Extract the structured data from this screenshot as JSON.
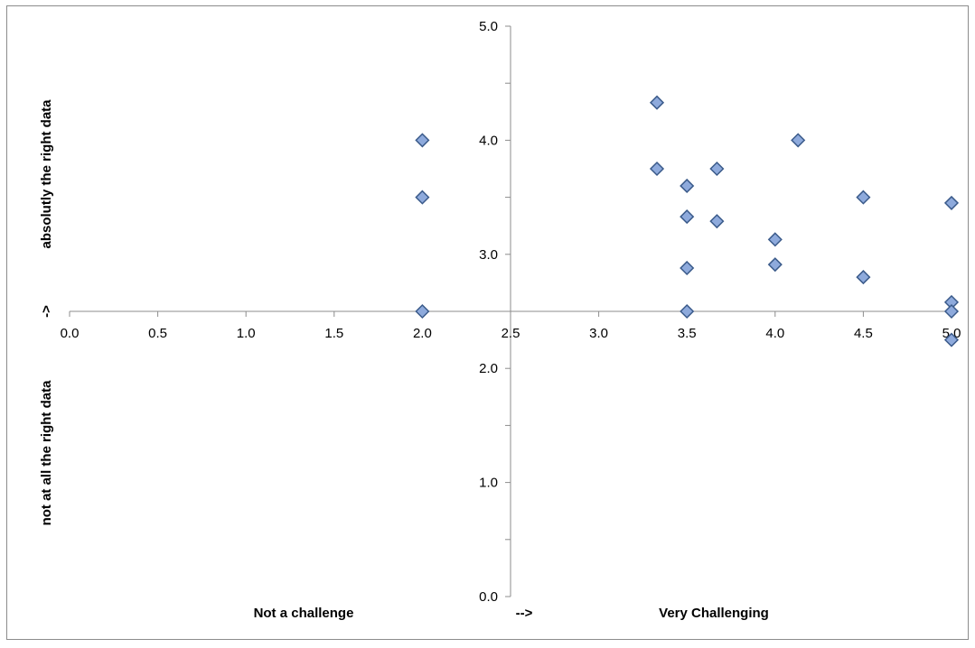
{
  "chart_data": {
    "type": "scatter",
    "x_title_left": "Not a challenge",
    "x_title_arrow": "-->",
    "x_title_right": "Very Challenging",
    "y_title_top": "absolutly the right data",
    "y_title_arrow": "->",
    "y_title_bottom": "not at all the right data",
    "xlim": [
      0,
      5
    ],
    "ylim": [
      0,
      5
    ],
    "x_crosses_y_at": 2.5,
    "y_crosses_x_at": 2.5,
    "x_ticks": [
      "0.0",
      "0.5",
      "1.0",
      "1.5",
      "2.0",
      "2.5",
      "3.0",
      "3.5",
      "4.0",
      "4.5",
      "5.0"
    ],
    "y_ticks": [
      "0.0",
      "1.0",
      "2.0",
      "3.0",
      "4.0",
      "5.0"
    ],
    "grid": false,
    "legend": "none",
    "marker": "diamond",
    "marker_color": "#8eaadc",
    "marker_edge": "#3a5a8a",
    "points": [
      {
        "x": 2.0,
        "y": 4.0
      },
      {
        "x": 2.0,
        "y": 3.5
      },
      {
        "x": 2.0,
        "y": 2.5
      },
      {
        "x": 3.33,
        "y": 4.33
      },
      {
        "x": 3.33,
        "y": 3.75
      },
      {
        "x": 3.5,
        "y": 3.6
      },
      {
        "x": 3.5,
        "y": 3.33
      },
      {
        "x": 3.5,
        "y": 2.88
      },
      {
        "x": 3.5,
        "y": 2.5
      },
      {
        "x": 3.67,
        "y": 3.75
      },
      {
        "x": 3.67,
        "y": 3.29
      },
      {
        "x": 4.0,
        "y": 3.13
      },
      {
        "x": 4.0,
        "y": 2.91
      },
      {
        "x": 4.13,
        "y": 4.0
      },
      {
        "x": 4.5,
        "y": 3.5
      },
      {
        "x": 4.5,
        "y": 2.8
      },
      {
        "x": 5.0,
        "y": 3.45
      },
      {
        "x": 5.0,
        "y": 2.58
      },
      {
        "x": 5.0,
        "y": 2.5
      },
      {
        "x": 5.0,
        "y": 2.25
      }
    ]
  }
}
